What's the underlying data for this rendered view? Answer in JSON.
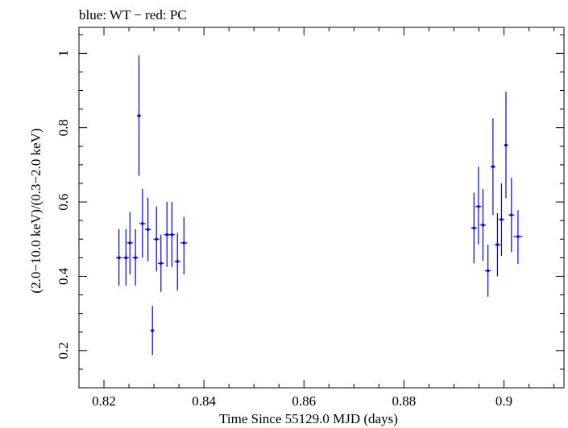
{
  "chart_data": {
    "type": "scatter",
    "title": "blue: WT − red: PC",
    "xlabel": "Time Since 55129.0 MJD (days)",
    "ylabel": "(2.0−10.0 keV)/(0.3−2.0 keV)",
    "xlim": [
      0.815,
      0.912
    ],
    "ylim": [
      0.1,
      1.07
    ],
    "xticks": [
      0.82,
      0.84,
      0.86,
      0.88,
      0.9
    ],
    "xtick_labels": [
      "0.82",
      "0.84",
      "0.86",
      "0.88",
      "0.9"
    ],
    "yticks": [
      0.2,
      0.4,
      0.6,
      0.8,
      1.0
    ],
    "ytick_labels": [
      "0.2",
      "0.4",
      "0.6",
      "0.8",
      "1"
    ],
    "grid": false,
    "series": [
      {
        "color": "#0000ff",
        "points": [
          {
            "x": 0.823,
            "xerr": 0.0006,
            "y": 0.45,
            "ylo": 0.375,
            "yhi": 0.527
          },
          {
            "x": 0.8244,
            "xerr": 0.0006,
            "y": 0.45,
            "ylo": 0.375,
            "yhi": 0.527
          },
          {
            "x": 0.8252,
            "xerr": 0.0006,
            "y": 0.49,
            "ylo": 0.405,
            "yhi": 0.573
          },
          {
            "x": 0.8263,
            "xerr": 0.0006,
            "y": 0.45,
            "ylo": 0.375,
            "yhi": 0.527
          },
          {
            "x": 0.827,
            "xerr": 0.0004,
            "y": 0.832,
            "ylo": 0.67,
            "yhi": 0.995
          },
          {
            "x": 0.8277,
            "xerr": 0.0006,
            "y": 0.542,
            "ylo": 0.45,
            "yhi": 0.635
          },
          {
            "x": 0.8288,
            "xerr": 0.0006,
            "y": 0.526,
            "ylo": 0.44,
            "yhi": 0.612
          },
          {
            "x": 0.8297,
            "xerr": 0.0004,
            "y": 0.254,
            "ylo": 0.188,
            "yhi": 0.32
          },
          {
            "x": 0.8305,
            "xerr": 0.0006,
            "y": 0.5,
            "ylo": 0.413,
            "yhi": 0.588
          },
          {
            "x": 0.8314,
            "xerr": 0.0006,
            "y": 0.435,
            "ylo": 0.358,
            "yhi": 0.512
          },
          {
            "x": 0.8326,
            "xerr": 0.0006,
            "y": 0.512,
            "ylo": 0.425,
            "yhi": 0.6
          },
          {
            "x": 0.8336,
            "xerr": 0.0006,
            "y": 0.512,
            "ylo": 0.425,
            "yhi": 0.6
          },
          {
            "x": 0.8347,
            "xerr": 0.0006,
            "y": 0.44,
            "ylo": 0.362,
            "yhi": 0.517
          },
          {
            "x": 0.836,
            "xerr": 0.0007,
            "y": 0.49,
            "ylo": 0.405,
            "yhi": 0.56
          },
          {
            "x": 0.894,
            "xerr": 0.0006,
            "y": 0.53,
            "ylo": 0.435,
            "yhi": 0.625
          },
          {
            "x": 0.8949,
            "xerr": 0.0006,
            "y": 0.588,
            "ylo": 0.485,
            "yhi": 0.695
          },
          {
            "x": 0.8958,
            "xerr": 0.0006,
            "y": 0.538,
            "ylo": 0.442,
            "yhi": 0.635
          },
          {
            "x": 0.8968,
            "xerr": 0.0006,
            "y": 0.415,
            "ylo": 0.345,
            "yhi": 0.485
          },
          {
            "x": 0.8978,
            "xerr": 0.0005,
            "y": 0.695,
            "ylo": 0.565,
            "yhi": 0.825
          },
          {
            "x": 0.8987,
            "xerr": 0.0006,
            "y": 0.485,
            "ylo": 0.4,
            "yhi": 0.57
          },
          {
            "x": 0.8995,
            "xerr": 0.0006,
            "y": 0.553,
            "ylo": 0.455,
            "yhi": 0.65
          },
          {
            "x": 0.9004,
            "xerr": 0.0004,
            "y": 0.753,
            "ylo": 0.61,
            "yhi": 0.897
          },
          {
            "x": 0.9015,
            "xerr": 0.0006,
            "y": 0.565,
            "ylo": 0.465,
            "yhi": 0.665
          },
          {
            "x": 0.9028,
            "xerr": 0.0009,
            "y": 0.507,
            "ylo": 0.433,
            "yhi": 0.578
          }
        ]
      }
    ]
  }
}
